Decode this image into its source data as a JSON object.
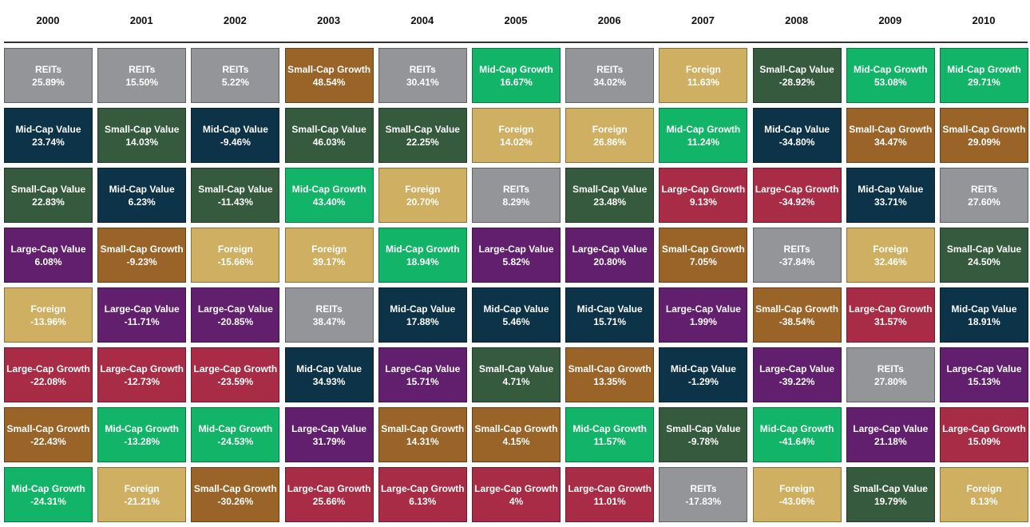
{
  "colors": {
    "REITs": "#939598",
    "Mid-Cap Value": "#0d3349",
    "Small-Cap Value": "#355a3e",
    "Large-Cap Value": "#621f6e",
    "Foreign": "#cfaf62",
    "Large-Cap Growth": "#a82c45",
    "Small-Cap Growth": "#9a6428",
    "Mid-Cap Growth": "#12b467"
  },
  "chart_data": {
    "type": "table",
    "title": "",
    "years": [
      "2000",
      "2001",
      "2002",
      "2003",
      "2004",
      "2005",
      "2006",
      "2007",
      "2008",
      "2009",
      "2010"
    ],
    "columns": [
      [
        {
          "label": "REITs",
          "value": "25.89%"
        },
        {
          "label": "Mid-Cap Value",
          "value": "23.74%"
        },
        {
          "label": "Small-Cap Value",
          "value": "22.83%"
        },
        {
          "label": "Large-Cap Value",
          "value": "6.08%"
        },
        {
          "label": "Foreign",
          "value": "-13.96%"
        },
        {
          "label": "Large-Cap Growth",
          "value": "-22.08%"
        },
        {
          "label": "Small-Cap Growth",
          "value": "-22.43%"
        },
        {
          "label": "Mid-Cap Growth",
          "value": "-24.31%"
        }
      ],
      [
        {
          "label": "REITs",
          "value": "15.50%"
        },
        {
          "label": "Small-Cap Value",
          "value": "14.03%"
        },
        {
          "label": "Mid-Cap Value",
          "value": "6.23%"
        },
        {
          "label": "Small-Cap Growth",
          "value": "-9.23%"
        },
        {
          "label": "Large-Cap Value",
          "value": "-11.71%"
        },
        {
          "label": "Large-Cap Growth",
          "value": "-12.73%"
        },
        {
          "label": "Mid-Cap Growth",
          "value": "-13.28%"
        },
        {
          "label": "Foreign",
          "value": "-21.21%"
        }
      ],
      [
        {
          "label": "REITs",
          "value": "5.22%"
        },
        {
          "label": "Mid-Cap Value",
          "value": "-9.46%"
        },
        {
          "label": "Small-Cap Value",
          "value": "-11.43%"
        },
        {
          "label": "Foreign",
          "value": "-15.66%"
        },
        {
          "label": "Large-Cap Value",
          "value": "-20.85%"
        },
        {
          "label": "Large-Cap Growth",
          "value": "-23.59%"
        },
        {
          "label": "Mid-Cap Growth",
          "value": "-24.53%"
        },
        {
          "label": "Small-Cap Growth",
          "value": "-30.26%"
        }
      ],
      [
        {
          "label": "Small-Cap Growth",
          "value": "48.54%"
        },
        {
          "label": "Small-Cap Value",
          "value": "46.03%"
        },
        {
          "label": "Mid-Cap Growth",
          "value": "43.40%"
        },
        {
          "label": "Foreign",
          "value": "39.17%"
        },
        {
          "label": "REITs",
          "value": "38.47%"
        },
        {
          "label": "Mid-Cap Value",
          "value": "34.93%"
        },
        {
          "label": "Large-Cap Value",
          "value": "31.79%"
        },
        {
          "label": "Large-Cap Growth",
          "value": "25.66%"
        }
      ],
      [
        {
          "label": "REITs",
          "value": "30.41%"
        },
        {
          "label": "Small-Cap Value",
          "value": "22.25%"
        },
        {
          "label": "Foreign",
          "value": "20.70%"
        },
        {
          "label": "Mid-Cap Growth",
          "value": "18.94%"
        },
        {
          "label": "Mid-Cap Value",
          "value": "17.88%"
        },
        {
          "label": "Large-Cap Value",
          "value": "15.71%"
        },
        {
          "label": "Small-Cap Growth",
          "value": "14.31%"
        },
        {
          "label": "Large-Cap Growth",
          "value": "6.13%"
        }
      ],
      [
        {
          "label": "Mid-Cap Growth",
          "value": "16.67%"
        },
        {
          "label": "Foreign",
          "value": "14.02%"
        },
        {
          "label": "REITs",
          "value": "8.29%"
        },
        {
          "label": "Large-Cap Value",
          "value": "5.82%"
        },
        {
          "label": "Mid-Cap Value",
          "value": "5.46%"
        },
        {
          "label": "Small-Cap Value",
          "value": "4.71%"
        },
        {
          "label": "Small-Cap Growth",
          "value": "4.15%"
        },
        {
          "label": "Large-Cap Growth",
          "value": "4%"
        }
      ],
      [
        {
          "label": "REITs",
          "value": "34.02%"
        },
        {
          "label": "Foreign",
          "value": "26.86%"
        },
        {
          "label": "Small-Cap Value",
          "value": "23.48%"
        },
        {
          "label": "Large-Cap Value",
          "value": "20.80%"
        },
        {
          "label": "Mid-Cap Value",
          "value": "15.71%"
        },
        {
          "label": "Small-Cap Growth",
          "value": "13.35%"
        },
        {
          "label": "Mid-Cap Growth",
          "value": "11.57%"
        },
        {
          "label": "Large-Cap Growth",
          "value": "11.01%"
        }
      ],
      [
        {
          "label": "Foreign",
          "value": "11.63%"
        },
        {
          "label": "Mid-Cap Growth",
          "value": "11.24%"
        },
        {
          "label": "Large-Cap Growth",
          "value": "9.13%"
        },
        {
          "label": "Small-Cap Growth",
          "value": "7.05%"
        },
        {
          "label": "Large-Cap Value",
          "value": "1.99%"
        },
        {
          "label": "Mid-Cap Value",
          "value": "-1.29%"
        },
        {
          "label": "Small-Cap Value",
          "value": "-9.78%"
        },
        {
          "label": "REITs",
          "value": "-17.83%"
        }
      ],
      [
        {
          "label": "Small-Cap Value",
          "value": "-28.92%"
        },
        {
          "label": "Mid-Cap Value",
          "value": "-34.80%"
        },
        {
          "label": "Large-Cap Growth",
          "value": "-34.92%"
        },
        {
          "label": "REITs",
          "value": "-37.84%"
        },
        {
          "label": "Small-Cap Growth",
          "value": "-38.54%"
        },
        {
          "label": "Large-Cap Value",
          "value": "-39.22%"
        },
        {
          "label": "Mid-Cap Growth",
          "value": "-41.64%"
        },
        {
          "label": "Foreign",
          "value": "-43.06%"
        }
      ],
      [
        {
          "label": "Mid-Cap Growth",
          "value": "53.08%"
        },
        {
          "label": "Small-Cap Growth",
          "value": "34.47%"
        },
        {
          "label": "Mid-Cap Value",
          "value": "33.71%"
        },
        {
          "label": "Foreign",
          "value": "32.46%"
        },
        {
          "label": "Large-Cap Growth",
          "value": "31.57%"
        },
        {
          "label": "REITs",
          "value": "27.80%"
        },
        {
          "label": "Large-Cap Value",
          "value": "21.18%"
        },
        {
          "label": "Small-Cap Value",
          "value": "19.79%"
        }
      ],
      [
        {
          "label": "Mid-Cap Growth",
          "value": "29.71%"
        },
        {
          "label": "Small-Cap Growth",
          "value": "29.09%"
        },
        {
          "label": "REITs",
          "value": "27.60%"
        },
        {
          "label": "Small-Cap Value",
          "value": "24.50%"
        },
        {
          "label": "Mid-Cap Value",
          "value": "18.91%"
        },
        {
          "label": "Large-Cap Value",
          "value": "15.13%"
        },
        {
          "label": "Large-Cap Growth",
          "value": "15.09%"
        },
        {
          "label": "Foreign",
          "value": "8.13%"
        }
      ]
    ]
  }
}
